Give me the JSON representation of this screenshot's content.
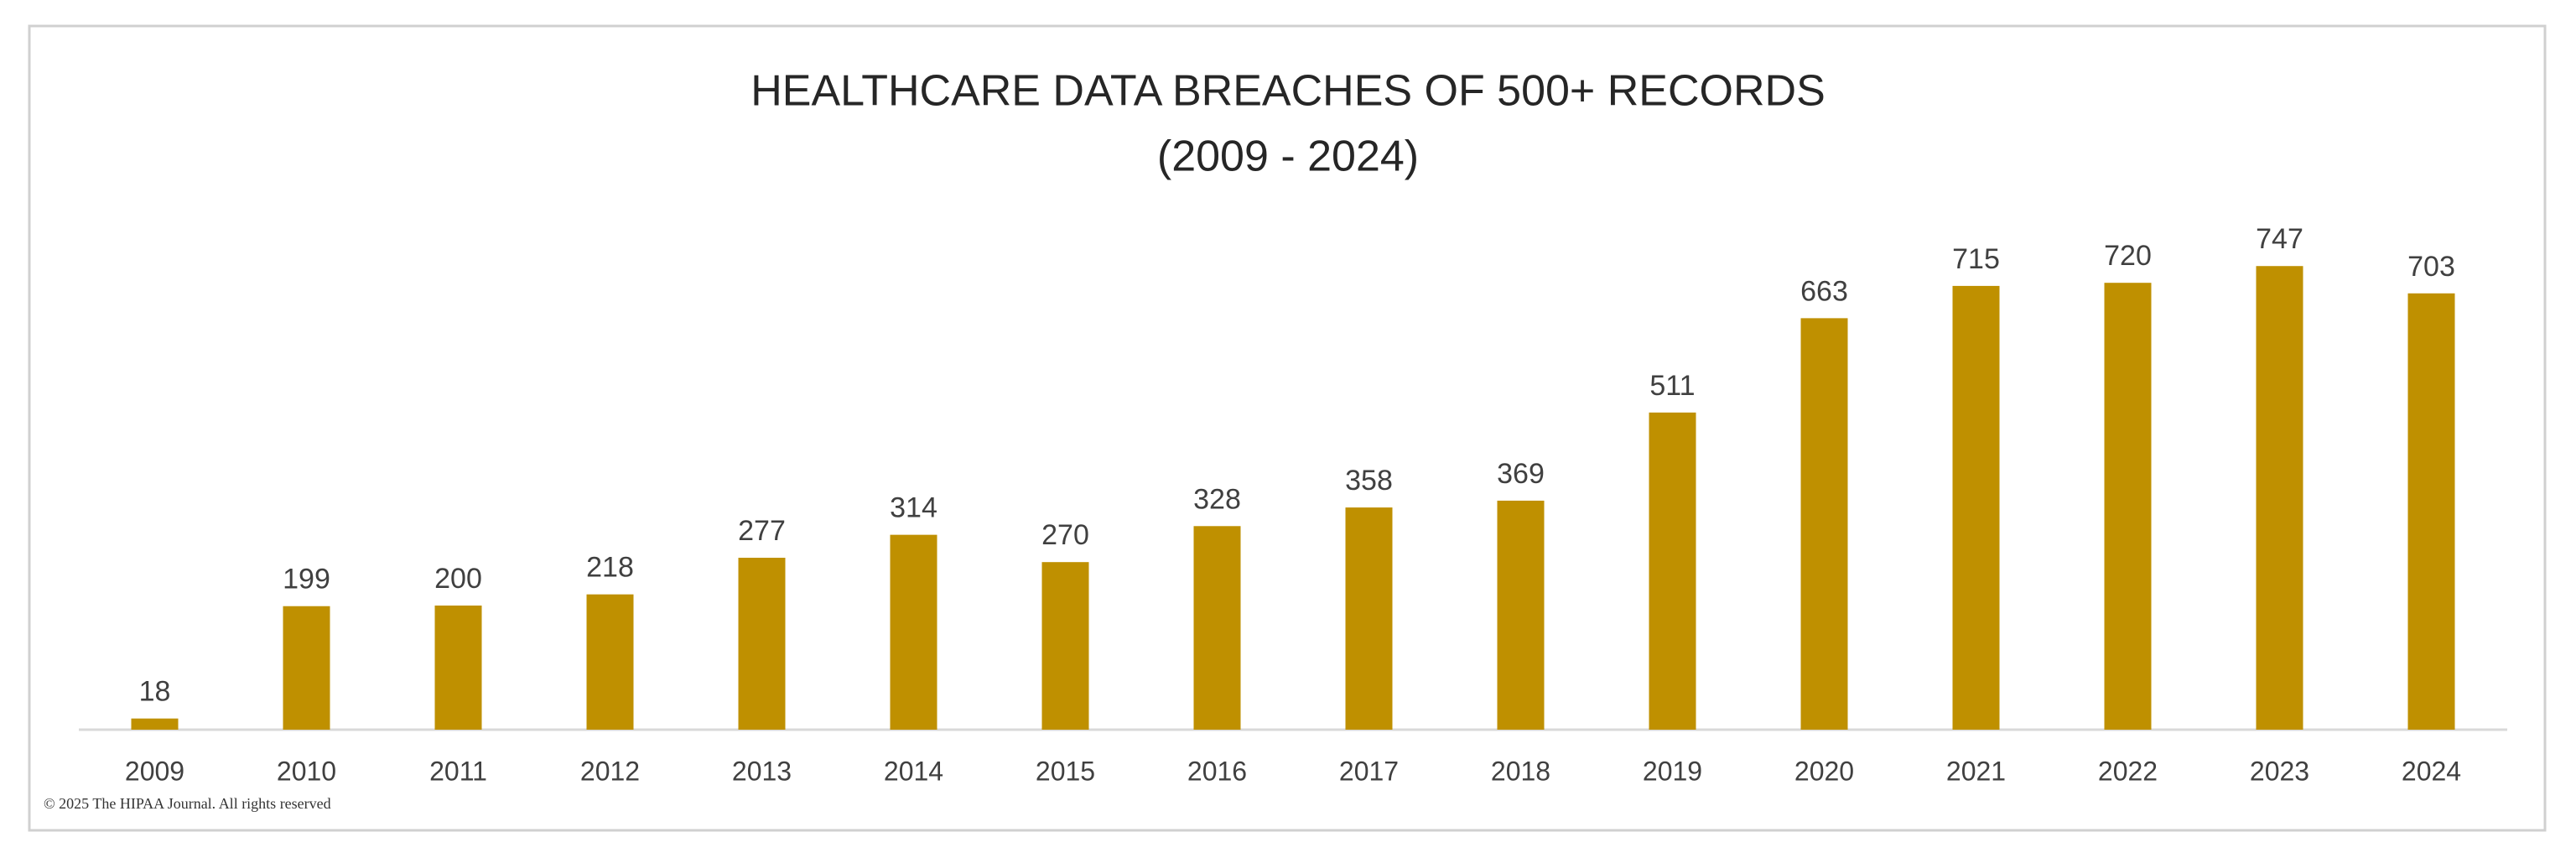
{
  "chart_data": {
    "type": "bar",
    "title": "HEALTHCARE DATA BREACHES OF 500+ RECORDS",
    "subtitle": "(2009 - 2024)",
    "categories": [
      "2009",
      "2010",
      "2011",
      "2012",
      "2013",
      "2014",
      "2015",
      "2016",
      "2017",
      "2018",
      "2019",
      "2020",
      "2021",
      "2022",
      "2023",
      "2024"
    ],
    "values": [
      18,
      199,
      200,
      218,
      277,
      314,
      270,
      328,
      358,
      369,
      511,
      663,
      715,
      720,
      747,
      703
    ],
    "color": "#bf9000",
    "ylim": [
      0,
      800
    ],
    "data_labels": true,
    "copyright": "© 2025 The HIPAA Journal. All rights reserved"
  }
}
